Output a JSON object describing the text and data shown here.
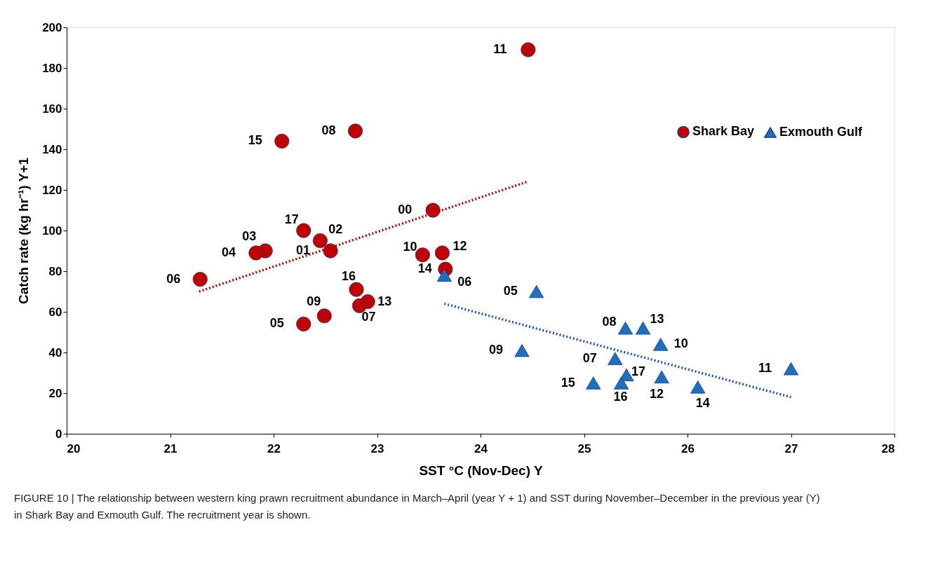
{
  "chart_data": {
    "type": "scatter",
    "xlabel": "SST °C (Nov-Dec) Y",
    "ylabel": "Catch rate (kg hr⁻¹) Y+1",
    "xlim": [
      20,
      28
    ],
    "xticks": [
      20,
      21,
      22,
      23,
      24,
      25,
      26,
      27,
      28
    ],
    "ylim": [
      0,
      200
    ],
    "yticks": [
      0,
      20,
      40,
      60,
      80,
      100,
      120,
      140,
      160,
      180,
      200
    ],
    "grid": false,
    "legend": "top right",
    "series": [
      {
        "name": "Shark Bay",
        "color": "#c00000",
        "marker": "circle",
        "x": [
          24.46,
          22.08,
          22.79,
          23.54,
          22.29,
          22.45,
          22.55,
          21.92,
          21.83,
          21.29,
          23.44,
          23.63,
          23.66,
          22.8,
          22.91,
          22.83,
          22.49,
          22.29
        ],
        "values": [
          189,
          144,
          149,
          110,
          100,
          95,
          90,
          90,
          89,
          76,
          88,
          89,
          81,
          71,
          65,
          63,
          58,
          54
        ]
      },
      {
        "name": "Exmouth Gulf",
        "color": "#1f6fc0",
        "marker": "triangle",
        "x": [
          23.65,
          24.54,
          25.4,
          25.57,
          25.74,
          24.4,
          25.3,
          25.41,
          25.75,
          25.09,
          25.36,
          26.1,
          27.0
        ],
        "values": [
          78,
          70,
          52,
          52,
          44,
          41,
          37,
          29,
          28,
          25,
          25,
          23,
          32
        ]
      },
      {
        "type": "line",
        "color": "#c00000",
        "line_style": "dotted",
        "x": [
          21.28,
          24.45
        ],
        "values": [
          70,
          124
        ]
      },
      {
        "type": "line",
        "color": "#1f4fc0",
        "line_style": "dotted",
        "x": [
          23.65,
          27.0
        ],
        "values": [
          64,
          18
        ]
      }
    ],
    "annotations": [
      {
        "text": "11",
        "x": 24.46,
        "y": 189
      },
      {
        "text": "15",
        "x": 22.08,
        "y": 144
      },
      {
        "text": "08",
        "x": 22.79,
        "y": 149
      },
      {
        "text": "00",
        "x": 23.54,
        "y": 110
      },
      {
        "text": "17",
        "x": 22.29,
        "y": 100
      },
      {
        "text": "02",
        "x": 22.45,
        "y": 95
      },
      {
        "text": "01",
        "x": 22.55,
        "y": 90
      },
      {
        "text": "03",
        "x": 21.92,
        "y": 90
      },
      {
        "text": "04",
        "x": 21.83,
        "y": 89
      },
      {
        "text": "06",
        "x": 21.29,
        "y": 76
      },
      {
        "text": "10",
        "x": 23.44,
        "y": 88
      },
      {
        "text": "12",
        "x": 23.63,
        "y": 89
      },
      {
        "text": "14",
        "x": 23.66,
        "y": 81
      },
      {
        "text": "16",
        "x": 22.8,
        "y": 71
      },
      {
        "text": "13",
        "x": 22.91,
        "y": 65
      },
      {
        "text": "07",
        "x": 22.83,
        "y": 63
      },
      {
        "text": "09",
        "x": 22.49,
        "y": 58
      },
      {
        "text": "05",
        "x": 22.29,
        "y": 54
      },
      {
        "text": "06",
        "x": 23.65,
        "y": 78
      },
      {
        "text": "05",
        "x": 24.54,
        "y": 70
      },
      {
        "text": "08",
        "x": 25.4,
        "y": 52
      },
      {
        "text": "13",
        "x": 25.57,
        "y": 52
      },
      {
        "text": "10",
        "x": 25.74,
        "y": 44
      },
      {
        "text": "09",
        "x": 24.4,
        "y": 41
      },
      {
        "text": "07",
        "x": 25.3,
        "y": 37
      },
      {
        "text": "17",
        "x": 25.41,
        "y": 29
      },
      {
        "text": "12",
        "x": 25.75,
        "y": 28
      },
      {
        "text": "15",
        "x": 25.09,
        "y": 25
      },
      {
        "text": "16",
        "x": 25.36,
        "y": 25
      },
      {
        "text": "14",
        "x": 26.1,
        "y": 23
      },
      {
        "text": "11",
        "x": 27.0,
        "y": 32
      },
      "FIGURE 10 | The relationship between western king prawn recruitment abundance in March–April (year Y + 1) and SST during November–December in the previous year (Y) in Shark Bay and Exmouth Gulf. The recruitment year is shown."
    ]
  }
}
